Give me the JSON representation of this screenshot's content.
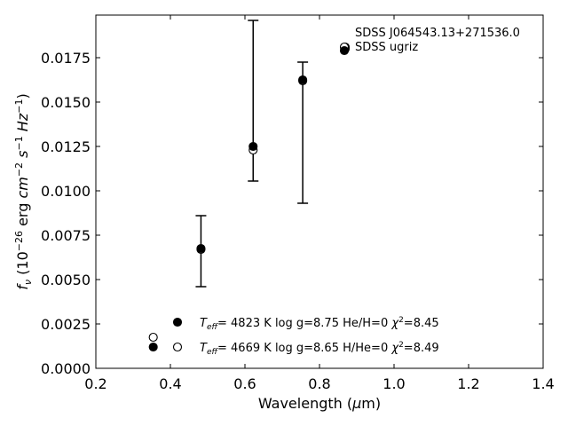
{
  "chart_data": {
    "type": "scatter",
    "xlabel_prefix": "Wavelength (",
    "xlabel_symbol": "μ",
    "xlabel_suffix": "m)",
    "ylabel": "f_ν (10^-26 erg cm^-2 s^-1 Hz^-1)",
    "xlim": [
      0.2,
      1.4
    ],
    "ylim": [
      0.0,
      0.0199
    ],
    "x_ticks": [
      0.2,
      0.4,
      0.6,
      0.8,
      1.0,
      1.2,
      1.4
    ],
    "x_tick_labels": [
      "0.2",
      "0.4",
      "0.6",
      "0.8",
      "1.0",
      "1.2",
      "1.4"
    ],
    "y_ticks": [
      0.0,
      0.0025,
      0.005,
      0.0075,
      0.01,
      0.0125,
      0.015,
      0.0175
    ],
    "y_tick_labels": [
      "0.0000",
      "0.0025",
      "0.0050",
      "0.0075",
      "0.0100",
      "0.0125",
      "0.0150",
      "0.0175"
    ],
    "grid": false,
    "legend_position": "top-right",
    "series": [
      {
        "name": "SDSS J064543.13+271536.0",
        "marker": "open-circle",
        "x": [
          0.354,
          0.482,
          0.622,
          0.755,
          0.869
        ],
        "y": [
          0.00175,
          0.0067,
          0.0123,
          0.0162,
          0.0181
        ]
      },
      {
        "name": "SDSS ugriz",
        "marker": "filled-circle",
        "x": [
          0.354,
          0.482,
          0.622,
          0.755,
          0.869
        ],
        "y": [
          0.0012,
          0.00675,
          0.0125,
          0.01625,
          0.018
        ],
        "yerr_low": [
          null,
          0.00215,
          0.00195,
          0.00695,
          null
        ],
        "yerr_high": [
          null,
          0.00185,
          0.0071,
          0.001,
          null
        ]
      }
    ],
    "model_legend": [
      {
        "marker": "filled-circle",
        "teff_value": "4823",
        "teff_unit": "K",
        "logg_text": "log g=8.75",
        "comp_text": "He/H=0",
        "chi_value": "8.45"
      },
      {
        "marker": "open-circle",
        "teff_value": "4669",
        "teff_unit": "K",
        "logg_text": "log g=8.65",
        "comp_text": "H/He=0",
        "chi_value": "8.49"
      }
    ],
    "colors": {
      "marker": "#000000",
      "axes": "#000000",
      "background": "#ffffff"
    }
  }
}
